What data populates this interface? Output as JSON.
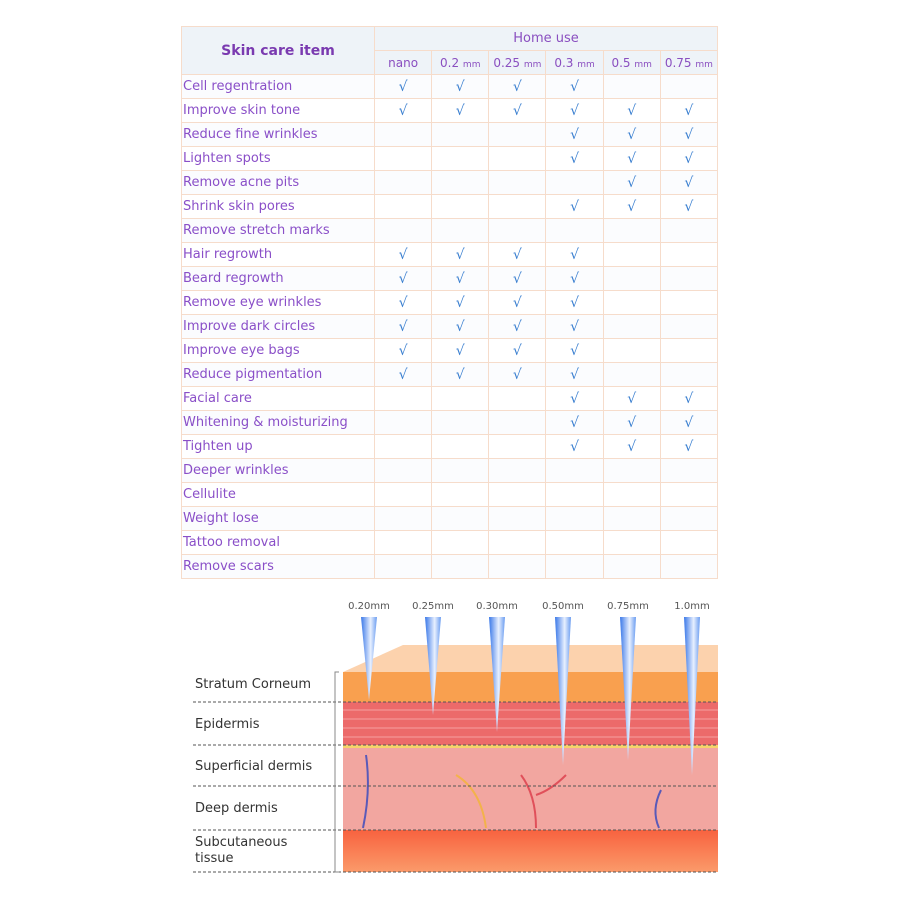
{
  "table": {
    "header_item": "Skin care item",
    "header_group": "Home use",
    "columns": [
      {
        "value": "nano",
        "unit": ""
      },
      {
        "value": "0.2",
        "unit": "mm"
      },
      {
        "value": "0.25",
        "unit": "mm"
      },
      {
        "value": "0.3",
        "unit": "mm"
      },
      {
        "value": "0.5",
        "unit": "mm"
      },
      {
        "value": "0.75",
        "unit": "mm"
      }
    ],
    "check_symbol": "√",
    "rows": [
      {
        "label": "Cell regentration",
        "checks": [
          1,
          1,
          1,
          1,
          0,
          0
        ]
      },
      {
        "label": "Improve skin tone",
        "checks": [
          1,
          1,
          1,
          1,
          1,
          1
        ]
      },
      {
        "label": "Reduce fine wrinkles",
        "checks": [
          0,
          0,
          0,
          1,
          1,
          1
        ]
      },
      {
        "label": "Lighten spots",
        "checks": [
          0,
          0,
          0,
          1,
          1,
          1
        ]
      },
      {
        "label": "Remove acne pits",
        "checks": [
          0,
          0,
          0,
          0,
          1,
          1
        ]
      },
      {
        "label": "Shrink skin pores",
        "checks": [
          0,
          0,
          0,
          1,
          1,
          1
        ]
      },
      {
        "label": "Remove stretch marks",
        "checks": [
          0,
          0,
          0,
          0,
          0,
          0
        ]
      },
      {
        "label": "Hair regrowth",
        "checks": [
          1,
          1,
          1,
          1,
          0,
          0
        ]
      },
      {
        "label": "Beard regrowth",
        "checks": [
          1,
          1,
          1,
          1,
          0,
          0
        ]
      },
      {
        "label": "Remove eye wrinkles",
        "checks": [
          1,
          1,
          1,
          1,
          0,
          0
        ]
      },
      {
        "label": "Improve dark circles",
        "checks": [
          1,
          1,
          1,
          1,
          0,
          0
        ]
      },
      {
        "label": "Improve eye bags",
        "checks": [
          1,
          1,
          1,
          1,
          0,
          0
        ]
      },
      {
        "label": "Reduce pigmentation",
        "checks": [
          1,
          1,
          1,
          1,
          0,
          0
        ]
      },
      {
        "label": "Facial care",
        "checks": [
          0,
          0,
          0,
          1,
          1,
          1
        ]
      },
      {
        "label": "Whitening & moisturizing",
        "checks": [
          0,
          0,
          0,
          1,
          1,
          1
        ]
      },
      {
        "label": "Tighten up",
        "checks": [
          0,
          0,
          0,
          1,
          1,
          1
        ]
      },
      {
        "label": "Deeper wrinkles",
        "checks": [
          0,
          0,
          0,
          0,
          0,
          0
        ]
      },
      {
        "label": "Cellulite",
        "checks": [
          0,
          0,
          0,
          0,
          0,
          0
        ]
      },
      {
        "label": "Weight lose",
        "checks": [
          0,
          0,
          0,
          0,
          0,
          0
        ]
      },
      {
        "label": "Tattoo removal",
        "checks": [
          0,
          0,
          0,
          0,
          0,
          0
        ]
      },
      {
        "label": "Remove scars",
        "checks": [
          0,
          0,
          0,
          0,
          0,
          0
        ]
      }
    ]
  },
  "diagram": {
    "needles": [
      "0.20mm",
      "0.25mm",
      "0.30mm",
      "0.50mm",
      "0.75mm",
      "1.0mm"
    ],
    "layers": [
      "Stratum Corneum",
      "Epidermis",
      "Superficial dermis",
      "Deep dermis",
      "Subcutaneous",
      "tissue"
    ],
    "colors": {
      "stratum": "#f9a04f",
      "epidermis": "#ec6a6a",
      "dermis": "#f2a6a0",
      "subcutaneous": "#f8623f",
      "needle": "#3a78e8"
    }
  }
}
